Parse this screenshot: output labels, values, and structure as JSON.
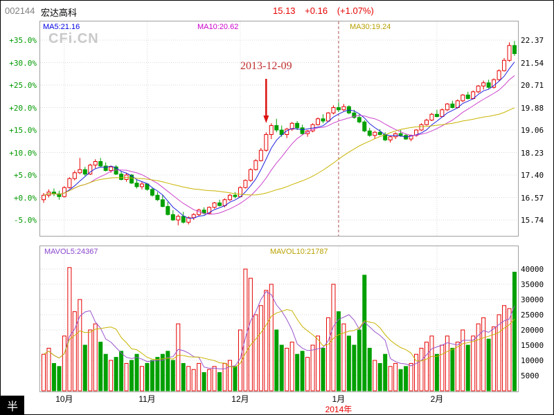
{
  "header": {
    "code": "002144",
    "name": "宏达高科",
    "price": "15.13",
    "change": "+0.16",
    "change_pct": "(+1.07%)"
  },
  "watermark": "CFi.CN",
  "logo_text": "半",
  "chart_data": {
    "type": "candlestick+volume",
    "baseline_price": 16.57,
    "ohlc_unit": "percent change vs baseline; price = baseline_price * (1 + pct/100)",
    "legend_price": [
      {
        "text": "MA5:21.16",
        "color": "#0000e6"
      },
      {
        "text": "MA10:20.62",
        "color": "#cc00cc"
      },
      {
        "text": "MA30:19.24",
        "color": "#b8a000"
      }
    ],
    "legend_volume": [
      {
        "text": "MAVOL5:24367",
        "color": "#8844cc"
      },
      {
        "text": "MAVOL10:21787",
        "color": "#b8a000"
      }
    ],
    "pct_axis": {
      "ticks": [
        {
          "pct": 35,
          "label": "+35.0%",
          "price_label": "22.37"
        },
        {
          "pct": 30,
          "label": "+30.0%",
          "price_label": "21.54"
        },
        {
          "pct": 25,
          "label": "+25.0%",
          "price_label": "20.71"
        },
        {
          "pct": 20,
          "label": "+20.0%",
          "price_label": "19.88"
        },
        {
          "pct": 15,
          "label": "+15.0%",
          "price_label": "19.06"
        },
        {
          "pct": 10,
          "label": "+10.0%",
          "price_label": "18.23"
        },
        {
          "pct": 5,
          "label": "+5.0%",
          "price_label": "17.40"
        },
        {
          "pct": 0,
          "label": "+0.0%",
          "price_label": "16.57"
        },
        {
          "pct": -5,
          "label": "-5.0%",
          "price_label": "15.74"
        }
      ]
    },
    "volume_axis": {
      "ticks": [
        40000,
        35000,
        30000,
        25000,
        20000,
        15000,
        10000,
        5000
      ]
    },
    "months": [
      {
        "label": "10月",
        "i": 4
      },
      {
        "label": "11月",
        "i": 20
      },
      {
        "label": "12月",
        "i": 38
      },
      {
        "label": "1月",
        "i": 57
      },
      {
        "label": "2月",
        "i": 76
      }
    ],
    "year_label": "2014年",
    "year_line_month": "1月",
    "annotation": {
      "text": "2013-12-09",
      "index": 43
    },
    "colors": {
      "up": "#e60000",
      "down": "#00a000",
      "ma5": "#2222dd",
      "ma10": "#cc44cc",
      "ma30": "#c8b400",
      "mavol5": "#9955cc",
      "mavol10": "#c8b400",
      "grid": "#d8d8d8",
      "year_line": "#b05050",
      "arrow": "#dd1111"
    },
    "candles": [
      [
        -0.5,
        1.0,
        -1.2,
        0.5,
        12000
      ],
      [
        0.5,
        1.8,
        0.0,
        1.2,
        14000
      ],
      [
        1.2,
        2.0,
        0.3,
        0.8,
        9000
      ],
      [
        0.8,
        1.5,
        -0.5,
        0.2,
        8000
      ],
      [
        0.2,
        2.5,
        0.0,
        2.2,
        18000
      ],
      [
        2.2,
        4.5,
        2.0,
        4.2,
        40500
      ],
      [
        4.2,
        6.0,
        3.8,
        5.5,
        26000
      ],
      [
        5.5,
        8.8,
        5.2,
        6.2,
        30000
      ],
      [
        6.2,
        6.8,
        4.8,
        5.2,
        15000
      ],
      [
        5.2,
        7.5,
        5.0,
        7.2,
        20000
      ],
      [
        7.2,
        8.5,
        6.5,
        8.0,
        22000
      ],
      [
        8.0,
        8.8,
        6.8,
        7.0,
        16000
      ],
      [
        7.0,
        7.8,
        5.8,
        6.0,
        12000
      ],
      [
        6.0,
        7.0,
        5.5,
        6.8,
        10000
      ],
      [
        6.8,
        7.2,
        5.0,
        5.2,
        11000
      ],
      [
        5.2,
        5.8,
        3.8,
        4.0,
        13000
      ],
      [
        4.0,
        5.5,
        3.5,
        5.0,
        9000
      ],
      [
        5.0,
        5.2,
        3.0,
        3.2,
        10000
      ],
      [
        3.2,
        4.0,
        2.0,
        2.4,
        12000
      ],
      [
        2.4,
        3.5,
        1.8,
        3.0,
        8000
      ],
      [
        3.0,
        3.2,
        1.5,
        1.8,
        9000
      ],
      [
        1.8,
        2.2,
        0.2,
        0.5,
        10000
      ],
      [
        0.5,
        1.2,
        -0.8,
        -0.5,
        11000
      ],
      [
        -0.5,
        0.5,
        -2.2,
        -2.0,
        12000
      ],
      [
        -2.0,
        -1.0,
        -4.0,
        -3.8,
        13000
      ],
      [
        -3.8,
        -2.8,
        -5.2,
        -5.0,
        10000
      ],
      [
        -5.0,
        -3.8,
        -6.2,
        -4.2,
        22000
      ],
      [
        -4.2,
        -3.2,
        -5.8,
        -5.5,
        9000
      ],
      [
        -5.5,
        -4.2,
        -6.0,
        -4.5,
        8000
      ],
      [
        -4.5,
        -3.5,
        -5.0,
        -3.8,
        7000
      ],
      [
        -3.8,
        -2.5,
        -4.2,
        -2.8,
        9000
      ],
      [
        -2.8,
        -2.2,
        -3.8,
        -3.5,
        6000
      ],
      [
        -3.5,
        -2.0,
        -3.8,
        -2.2,
        7000
      ],
      [
        -2.2,
        -1.0,
        -2.5,
        -1.2,
        8000
      ],
      [
        -1.2,
        -0.5,
        -2.0,
        -1.8,
        6000
      ],
      [
        -1.8,
        -0.2,
        -2.2,
        -0.5,
        9000
      ],
      [
        -0.5,
        0.8,
        -0.8,
        0.5,
        10000
      ],
      [
        0.5,
        1.2,
        -0.2,
        0.2,
        8000
      ],
      [
        0.2,
        2.5,
        0.0,
        2.2,
        20000
      ],
      [
        2.2,
        4.0,
        2.0,
        3.8,
        40000
      ],
      [
        3.8,
        6.5,
        3.5,
        6.2,
        37000
      ],
      [
        6.2,
        8.5,
        6.0,
        8.2,
        25000
      ],
      [
        8.2,
        11.0,
        8.0,
        10.5,
        28000
      ],
      [
        10.5,
        14.5,
        10.2,
        14.0,
        33000
      ],
      [
        14.0,
        16.5,
        13.0,
        16.0,
        35000
      ],
      [
        16.0,
        17.5,
        14.5,
        15.0,
        20000
      ],
      [
        15.0,
        16.0,
        13.5,
        14.0,
        15000
      ],
      [
        14.0,
        15.5,
        13.2,
        15.2,
        14000
      ],
      [
        15.2,
        16.8,
        14.8,
        16.5,
        16000
      ],
      [
        16.5,
        17.0,
        15.0,
        15.5,
        12000
      ],
      [
        15.5,
        16.2,
        14.0,
        14.2,
        13000
      ],
      [
        14.2,
        15.0,
        13.5,
        14.8,
        11000
      ],
      [
        14.8,
        16.5,
        14.5,
        16.2,
        15000
      ],
      [
        16.2,
        17.8,
        16.0,
        17.5,
        18000
      ],
      [
        17.5,
        18.5,
        16.5,
        17.0,
        14000
      ],
      [
        17.0,
        19.0,
        16.8,
        18.8,
        24000
      ],
      [
        18.8,
        20.5,
        18.5,
        20.0,
        35000
      ],
      [
        20.0,
        21.2,
        19.0,
        19.5,
        26000
      ],
      [
        19.5,
        20.8,
        19.2,
        20.2,
        22000
      ],
      [
        20.2,
        20.5,
        18.5,
        18.8,
        18000
      ],
      [
        18.8,
        19.5,
        17.5,
        17.8,
        15000
      ],
      [
        17.8,
        18.5,
        16.5,
        16.8,
        20000
      ],
      [
        16.8,
        17.2,
        14.5,
        14.8,
        38000
      ],
      [
        14.8,
        15.5,
        13.5,
        13.8,
        14000
      ],
      [
        13.8,
        14.8,
        13.0,
        14.5,
        10000
      ],
      [
        14.5,
        15.2,
        13.8,
        14.0,
        9000
      ],
      [
        14.0,
        14.5,
        12.5,
        12.8,
        12000
      ],
      [
        12.8,
        13.8,
        12.2,
        13.5,
        8000
      ],
      [
        13.5,
        14.5,
        13.0,
        14.2,
        9000
      ],
      [
        14.2,
        15.0,
        13.5,
        13.8,
        7000
      ],
      [
        13.8,
        14.2,
        12.8,
        13.0,
        8000
      ],
      [
        13.0,
        14.0,
        12.5,
        13.8,
        9000
      ],
      [
        13.8,
        15.2,
        13.5,
        15.0,
        12000
      ],
      [
        15.0,
        16.5,
        14.8,
        16.2,
        14000
      ],
      [
        16.2,
        17.5,
        16.0,
        17.2,
        16000
      ],
      [
        17.2,
        18.8,
        17.0,
        18.5,
        18000
      ],
      [
        18.5,
        19.5,
        17.8,
        18.0,
        12000
      ],
      [
        18.0,
        19.8,
        17.8,
        19.5,
        15000
      ],
      [
        19.5,
        21.0,
        19.2,
        20.8,
        18000
      ],
      [
        20.8,
        21.5,
        19.8,
        20.0,
        14000
      ],
      [
        20.0,
        21.8,
        19.8,
        21.5,
        16000
      ],
      [
        21.5,
        23.0,
        21.2,
        22.8,
        20000
      ],
      [
        22.8,
        23.5,
        21.8,
        22.0,
        15000
      ],
      [
        22.0,
        23.8,
        21.8,
        23.5,
        18000
      ],
      [
        23.5,
        25.0,
        23.2,
        24.8,
        22000
      ],
      [
        24.8,
        26.0,
        24.0,
        25.5,
        24000
      ],
      [
        25.5,
        26.2,
        24.2,
        24.5,
        17000
      ],
      [
        24.5,
        26.5,
        24.2,
        26.2,
        21000
      ],
      [
        26.2,
        28.5,
        26.0,
        28.2,
        25000
      ],
      [
        28.2,
        31.0,
        28.0,
        30.5,
        28000
      ],
      [
        30.5,
        34.5,
        30.2,
        33.8,
        27000
      ],
      [
        33.8,
        34.8,
        31.5,
        32.0,
        39000
      ]
    ]
  }
}
